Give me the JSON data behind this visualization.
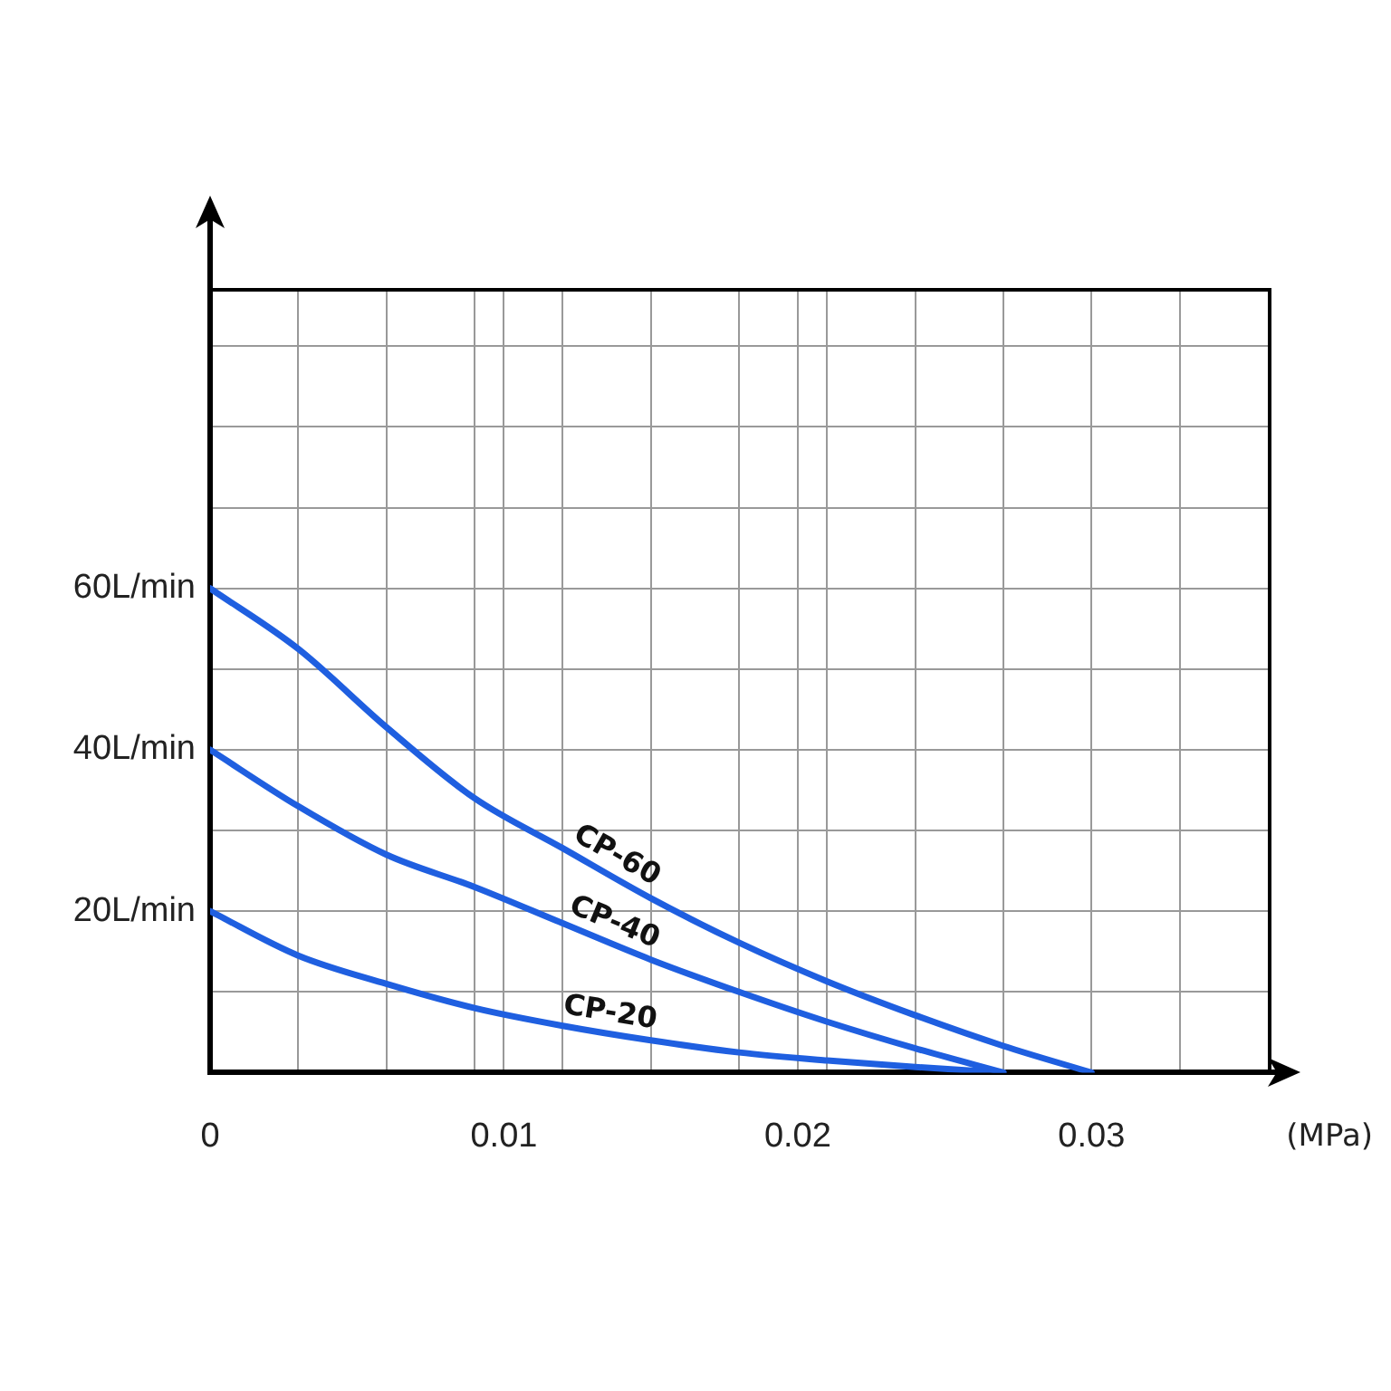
{
  "chart_data": {
    "type": "line",
    "xlabel": "(MPa)",
    "xlim": [
      0,
      0.036
    ],
    "ylim": [
      0,
      97
    ],
    "xticks": [
      0,
      {
        "value": 0.003,
        "label": null
      },
      {
        "value": 0.006,
        "label": null
      },
      {
        "value": 0.009,
        "label": null
      },
      0.01,
      {
        "value": 0.012,
        "label": null
      },
      {
        "value": 0.015,
        "label": null
      },
      {
        "value": 0.018,
        "label": null
      },
      0.02,
      {
        "value": 0.021,
        "label": null
      },
      {
        "value": 0.024,
        "label": null
      },
      {
        "value": 0.027,
        "label": null
      },
      0.03,
      {
        "value": 0.033,
        "label": null
      }
    ],
    "yticks": [
      {
        "value": 0,
        "label": null
      },
      {
        "value": 10,
        "label": null
      },
      {
        "value": 20,
        "label": "20L/min"
      },
      {
        "value": 30,
        "label": null
      },
      {
        "value": 40,
        "label": "40L/min"
      },
      {
        "value": 50,
        "label": null
      },
      {
        "value": 60,
        "label": "60L/min"
      },
      {
        "value": 70,
        "label": null
      },
      {
        "value": 80,
        "label": null
      },
      {
        "value": 90,
        "label": null
      }
    ],
    "grid": true,
    "legend": false,
    "marker": "none",
    "line_style": "solid",
    "x": [
      0,
      0.003,
      0.006,
      0.009,
      0.012,
      0.015,
      0.018,
      0.021,
      0.024,
      0.027,
      0.03
    ],
    "series": [
      {
        "name": "CP-60",
        "color": "#1f5fe0",
        "values": [
          60,
          52.5,
          42.8,
          34,
          27.8,
          21.6,
          16.1,
          11.3,
          7.1,
          3.3,
          0
        ]
      },
      {
        "name": "CP-40",
        "color": "#1f5fe0",
        "values": [
          40,
          33,
          27,
          23,
          18.5,
          14,
          10,
          6.3,
          3,
          0,
          null
        ]
      },
      {
        "name": "CP-20",
        "color": "#1f5fe0",
        "values": [
          20,
          14.5,
          11,
          8,
          5.8,
          4,
          2.5,
          1.5,
          0.7,
          0,
          null
        ]
      }
    ]
  }
}
